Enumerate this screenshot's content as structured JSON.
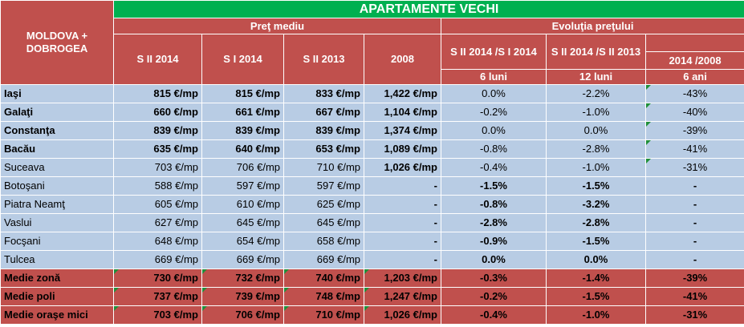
{
  "header": {
    "banner": "APARTAMENTE VECHI",
    "region": "MOLDOVA + DOBROGEA",
    "group_price": "Preţ mediu",
    "group_evolution": "Evoluţia preţului",
    "cols": [
      "S II 2014",
      "S I 2014",
      "S II 2013",
      "2008",
      "S II 2014 /S I 2014",
      "S II 2014 /S II 2013",
      "2014 /2008"
    ],
    "periods": [
      "6 luni",
      "12 luni",
      "6 ani"
    ]
  },
  "rows": [
    {
      "name": "Iaşi",
      "v": [
        "815 €/mp",
        "815 €/mp",
        "833 €/mp",
        "1,422 €/mp",
        "0.0%",
        "-2.2%",
        "-43%"
      ],
      "bold": [
        true,
        true,
        true,
        true,
        true,
        false,
        false,
        false
      ],
      "tri": [
        false,
        false,
        false,
        false,
        false,
        false,
        false,
        true
      ]
    },
    {
      "name": "Galaţi",
      "v": [
        "660 €/mp",
        "661 €/mp",
        "667 €/mp",
        "1,104 €/mp",
        "-0.2%",
        "-1.0%",
        "-40%"
      ],
      "bold": [
        true,
        true,
        true,
        true,
        true,
        false,
        false,
        false
      ],
      "tri": [
        false,
        false,
        false,
        false,
        false,
        false,
        false,
        true
      ]
    },
    {
      "name": "Constanţa",
      "v": [
        "839 €/mp",
        "839 €/mp",
        "839 €/mp",
        "1,374 €/mp",
        "0.0%",
        "0.0%",
        "-39%"
      ],
      "bold": [
        true,
        true,
        true,
        true,
        true,
        false,
        false,
        false
      ],
      "tri": [
        false,
        false,
        false,
        false,
        false,
        false,
        false,
        true
      ]
    },
    {
      "name": "Bacău",
      "v": [
        "635 €/mp",
        "640 €/mp",
        "653 €/mp",
        "1,089 €/mp",
        "-0.8%",
        "-2.8%",
        "-41%"
      ],
      "bold": [
        true,
        true,
        true,
        true,
        true,
        false,
        false,
        false
      ],
      "tri": [
        false,
        false,
        false,
        false,
        false,
        false,
        false,
        true
      ]
    },
    {
      "name": "Suceava",
      "v": [
        "703 €/mp",
        "706 €/mp",
        "710 €/mp",
        "1,026 €/mp",
        "-0.4%",
        "-1.0%",
        "-31%"
      ],
      "bold": [
        false,
        false,
        false,
        false,
        true,
        false,
        false,
        false
      ],
      "tri": [
        false,
        false,
        false,
        false,
        false,
        false,
        false,
        true
      ]
    },
    {
      "name": "Botoşani",
      "v": [
        "588 €/mp",
        "597 €/mp",
        "597 €/mp",
        "-",
        "-1.5%",
        "-1.5%",
        "-"
      ],
      "bold": [
        false,
        false,
        false,
        false,
        true,
        true,
        true,
        true
      ],
      "tri": [
        false,
        false,
        false,
        false,
        false,
        false,
        false,
        false
      ]
    },
    {
      "name": "Piatra Neamţ",
      "v": [
        "605 €/mp",
        "610 €/mp",
        "625 €/mp",
        "-",
        "-0.8%",
        "-3.2%",
        "-"
      ],
      "bold": [
        false,
        false,
        false,
        false,
        true,
        true,
        true,
        true
      ],
      "tri": [
        false,
        false,
        false,
        false,
        false,
        false,
        false,
        false
      ]
    },
    {
      "name": "Vaslui",
      "v": [
        "627 €/mp",
        "645 €/mp",
        "645 €/mp",
        "-",
        "-2.8%",
        "-2.8%",
        "-"
      ],
      "bold": [
        false,
        false,
        false,
        false,
        true,
        true,
        true,
        true
      ],
      "tri": [
        false,
        false,
        false,
        false,
        false,
        false,
        false,
        false
      ]
    },
    {
      "name": "Focşani",
      "v": [
        "648 €/mp",
        "654 €/mp",
        "658 €/mp",
        "-",
        "-0.9%",
        "-1.5%",
        "-"
      ],
      "bold": [
        false,
        false,
        false,
        false,
        true,
        true,
        true,
        true
      ],
      "tri": [
        false,
        false,
        false,
        false,
        false,
        false,
        false,
        false
      ]
    },
    {
      "name": "Tulcea",
      "v": [
        "669 €/mp",
        "669 €/mp",
        "669 €/mp",
        "-",
        "0.0%",
        "0.0%",
        "-"
      ],
      "bold": [
        false,
        false,
        false,
        false,
        true,
        true,
        true,
        true
      ],
      "tri": [
        false,
        false,
        false,
        false,
        false,
        false,
        false,
        false
      ]
    }
  ],
  "summary": [
    {
      "name": "Medie zonă",
      "v": [
        "730 €/mp",
        "732 €/mp",
        "740 €/mp",
        "1,203 €/mp",
        "-0.3%",
        "-1.4%",
        "-39%"
      ],
      "tri": [
        false,
        true,
        true,
        true,
        true,
        false,
        false,
        false
      ]
    },
    {
      "name": "Medie poli",
      "v": [
        "737 €/mp",
        "739 €/mp",
        "748 €/mp",
        "1,247 €/mp",
        "-0.2%",
        "-1.5%",
        "-41%"
      ],
      "tri": [
        false,
        true,
        true,
        true,
        true,
        false,
        false,
        false
      ]
    },
    {
      "name": "Medie oraşe mici",
      "v": [
        "703 €/mp",
        "706 €/mp",
        "710 €/mp",
        "1,026 €/mp",
        "-0.4%",
        "-1.0%",
        "-31%"
      ],
      "tri": [
        false,
        true,
        true,
        true,
        true,
        false,
        false,
        false
      ]
    }
  ]
}
